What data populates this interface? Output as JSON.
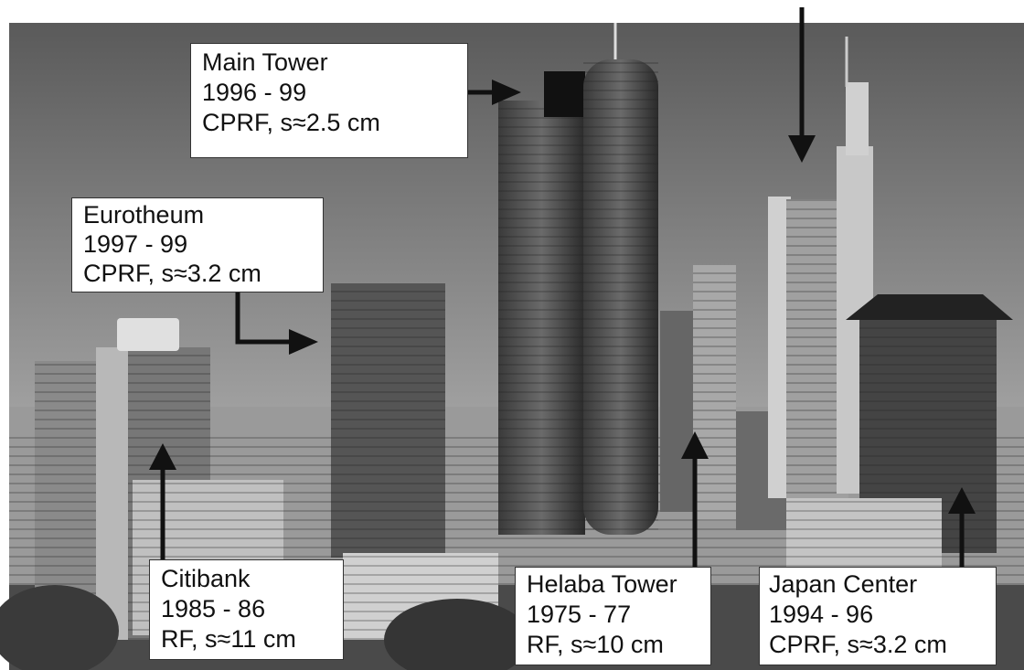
{
  "labels": [
    {
      "lines": [
        "Main Tower",
        "1996 - 99",
        "CPRF, s≈2.5 cm"
      ]
    },
    {
      "lines": [
        "Eurotheum",
        "1997 - 99",
        "CPRF, s≈3.2 cm"
      ]
    },
    {
      "lines": [
        "Citibank",
        "1985 - 86",
        "RF, s≈11 cm"
      ]
    },
    {
      "lines": [
        "Helaba Tower",
        "1975 - 77",
        "RF, s≈10 cm"
      ]
    },
    {
      "lines": [
        "Japan Center",
        "1994 - 96",
        "CPRF, s≈3.2 cm"
      ]
    }
  ]
}
